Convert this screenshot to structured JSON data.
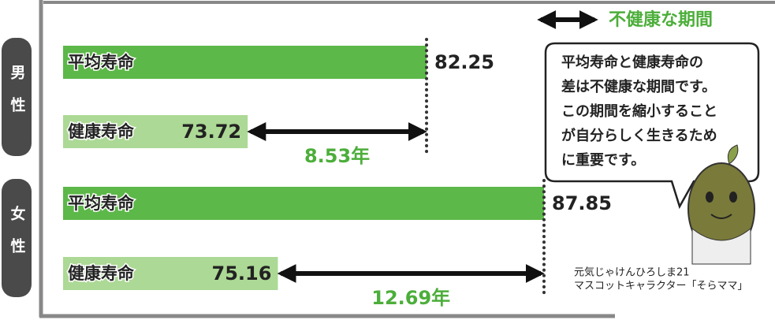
{
  "chart_data": {
    "type": "bar",
    "categories": [
      "男性",
      "女性"
    ],
    "series": [
      {
        "name": "平均寿命",
        "color": "#5cb848",
        "values": [
          82.25,
          87.85
        ]
      },
      {
        "name": "健康寿命",
        "color": "#acd995",
        "values": [
          73.72,
          75.16
        ]
      }
    ],
    "gaps": {
      "values": [
        8.53,
        12.69
      ],
      "value_labels": [
        "8.53年",
        "12.69年"
      ],
      "color": "#4cae3a"
    },
    "legend": "不健康な期間",
    "callout": [
      "平均寿命と健康寿命の",
      "差は不健康な期間です。",
      "この期間を縮小すること",
      "が自分らしく生きるため",
      "に重要です。"
    ],
    "caption": [
      "元気じゃけんひろしま21",
      "マスコットキャラクター「そらママ」"
    ]
  }
}
